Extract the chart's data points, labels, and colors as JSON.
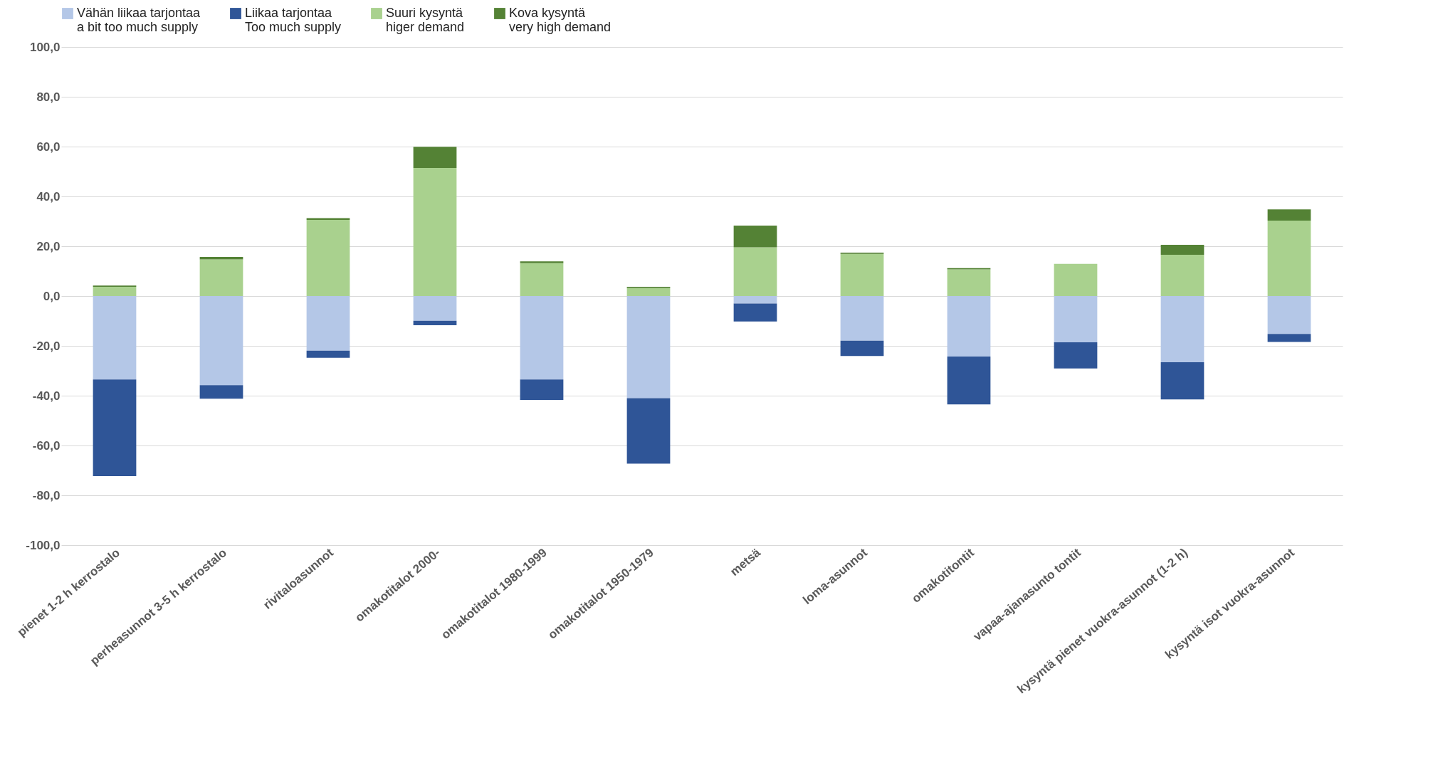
{
  "chart_data": {
    "type": "bar",
    "stacked": true,
    "categories": [
      "pienet 1-2 h kerrostalo",
      "perheasunnot 3-5 h kerrostalo",
      "rivitaloasunnot",
      "omakotitalot 2000-",
      "omakotitalot 1980-1999",
      "omakotitalot 1950-1979",
      "metsä",
      "loma-asunnot",
      "omakotitontit",
      "vapaa-ajanasunto tontit",
      "kysyntä pienet vuokra-asunnot (1-2 h)",
      "kysyntä isot vuokra-asunnot"
    ],
    "series": [
      {
        "name": "Vähän liikaa tarjontaa\na bit too much supply",
        "color": "#b4c7e7",
        "values": [
          -33.5,
          -35.8,
          -21.9,
          -9.9,
          -33.5,
          -41.0,
          -3.0,
          -17.9,
          -24.3,
          -18.6,
          -26.6,
          -15.2
        ]
      },
      {
        "name": "Liikaa tarjontaa\nToo much supply",
        "color": "#2f5597",
        "values": [
          -38.8,
          -5.4,
          -2.9,
          -1.8,
          -8.2,
          -26.3,
          -7.2,
          -6.2,
          -19.2,
          -10.5,
          -14.9,
          -3.2
        ]
      },
      {
        "name": "Suuri kysyntä\nhiger demand",
        "color": "#a9d18e",
        "values": [
          3.7,
          14.7,
          30.6,
          51.4,
          13.2,
          3.2,
          19.6,
          16.9,
          10.7,
          12.9,
          16.6,
          30.3
        ]
      },
      {
        "name": "Kova kysyntä\nvery high demand",
        "color": "#548235",
        "values": [
          0.5,
          1.0,
          0.7,
          8.5,
          0.7,
          0.5,
          8.7,
          0.5,
          0.5,
          0,
          4.0,
          4.5
        ]
      }
    ],
    "ylim": [
      -100,
      100
    ],
    "yticks": [
      {
        "value": -100,
        "label": "-100,0"
      },
      {
        "value": -80,
        "label": "-80,0"
      },
      {
        "value": -60,
        "label": "-60,0"
      },
      {
        "value": -40,
        "label": "-40,0"
      },
      {
        "value": -20,
        "label": "-20,0"
      },
      {
        "value": 0,
        "label": "0,0"
      },
      {
        "value": 20,
        "label": "20,0"
      },
      {
        "value": 40,
        "label": "40,0"
      },
      {
        "value": 60,
        "label": "60,0"
      },
      {
        "value": 80,
        "label": "80,0"
      },
      {
        "value": 100,
        "label": "100,0"
      }
    ],
    "grid": "y",
    "legend": "top"
  }
}
